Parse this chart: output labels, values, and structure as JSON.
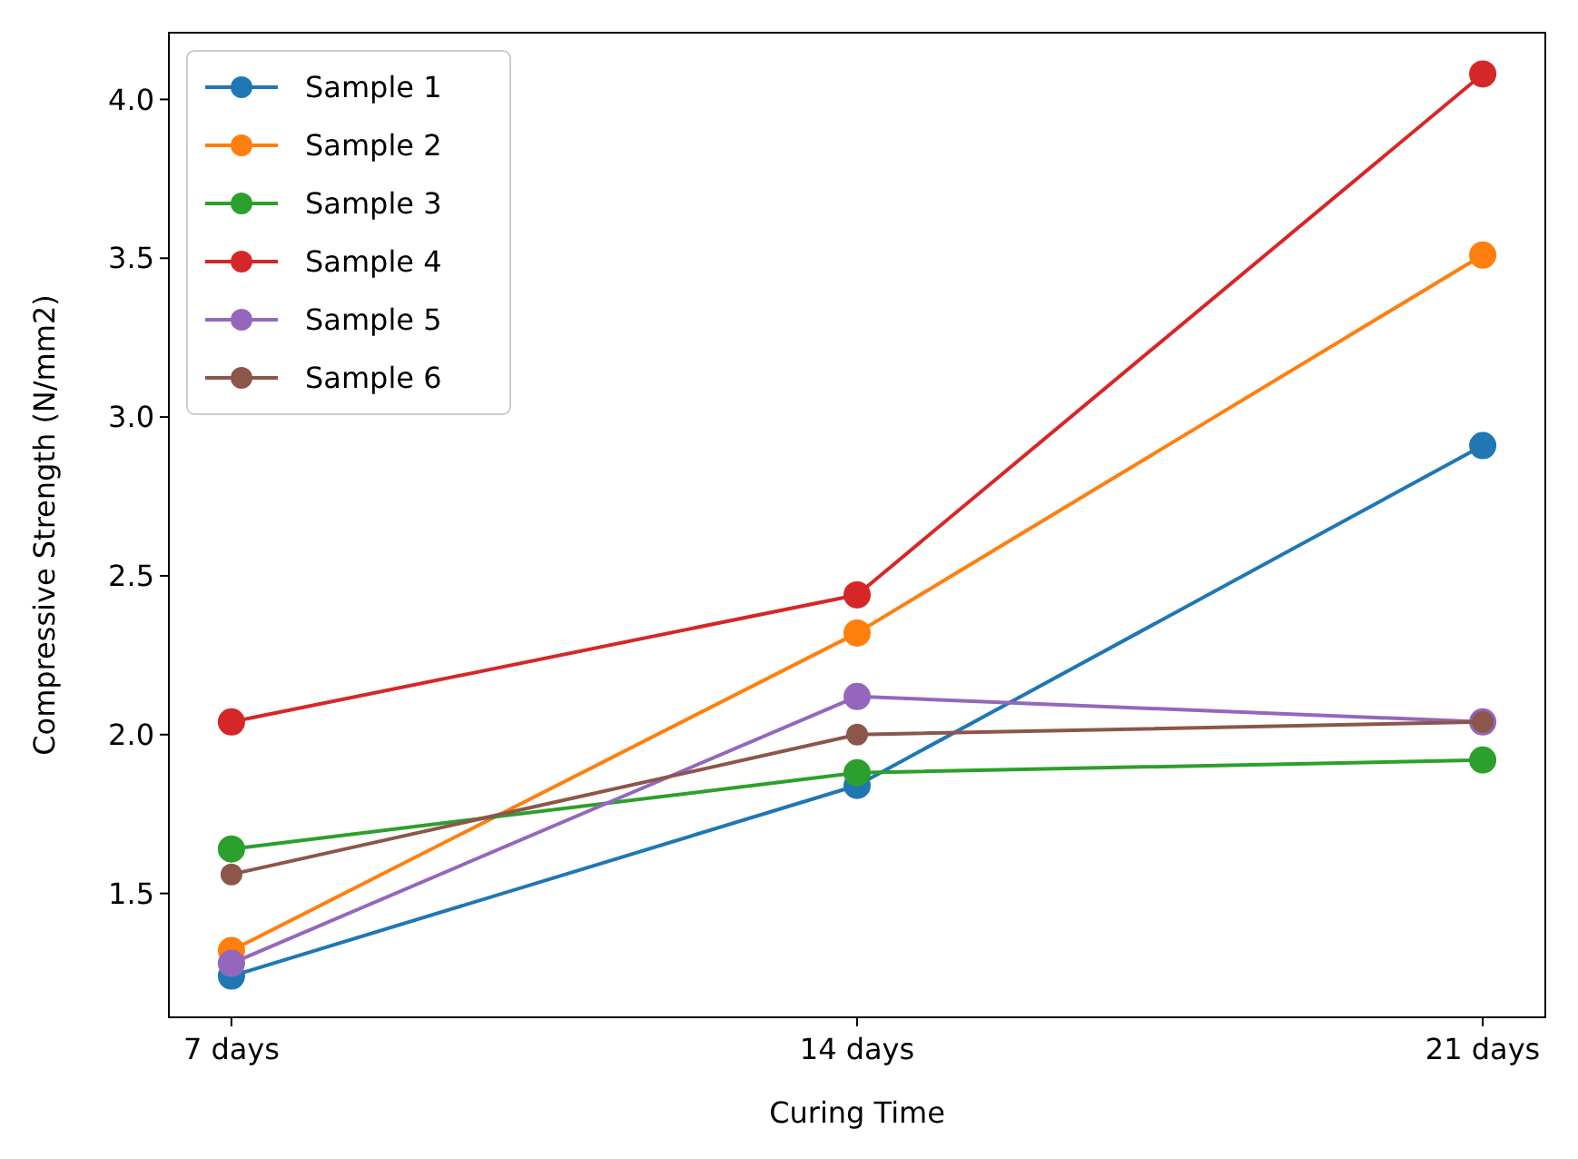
{
  "chart_data": {
    "type": "line",
    "xlabel": "Curing Time",
    "ylabel": "Compressive Strength (N/mm2)",
    "categories": [
      "7 days",
      "14 days",
      "21 days"
    ],
    "ylim": [
      1.11,
      4.21
    ],
    "yticks": [
      {
        "value": 1.5,
        "label": "1.5"
      },
      {
        "value": 2,
        "label": "2.0"
      },
      {
        "value": 2.5,
        "label": "2.5"
      },
      {
        "value": 3,
        "label": "3.0"
      },
      {
        "value": 3.5,
        "label": "3.5"
      },
      {
        "value": 4,
        "label": "4.0"
      }
    ],
    "marker": "circle",
    "line_style": "solid",
    "grid": false,
    "legend": "top left",
    "series": [
      {
        "name": "Sample 1",
        "color": "#1f77b4",
        "values": [
          1.24,
          1.84,
          2.91
        ]
      },
      {
        "name": "Sample 2",
        "color": "#ff7f0e",
        "values": [
          1.32,
          2.32,
          3.51
        ]
      },
      {
        "name": "Sample 3",
        "color": "#2ca02c",
        "values": [
          1.64,
          1.88,
          1.92
        ]
      },
      {
        "name": "Sample 4",
        "color": "#d62728",
        "values": [
          2.04,
          2.44,
          4.08
        ]
      },
      {
        "name": "Sample 5",
        "color": "#9467bd",
        "values": [
          1.28,
          2.12,
          2.04
        ]
      },
      {
        "name": "Sample 6",
        "color": "#8c564b",
        "values": [
          1.56,
          2.0,
          2.04
        ]
      }
    ]
  }
}
